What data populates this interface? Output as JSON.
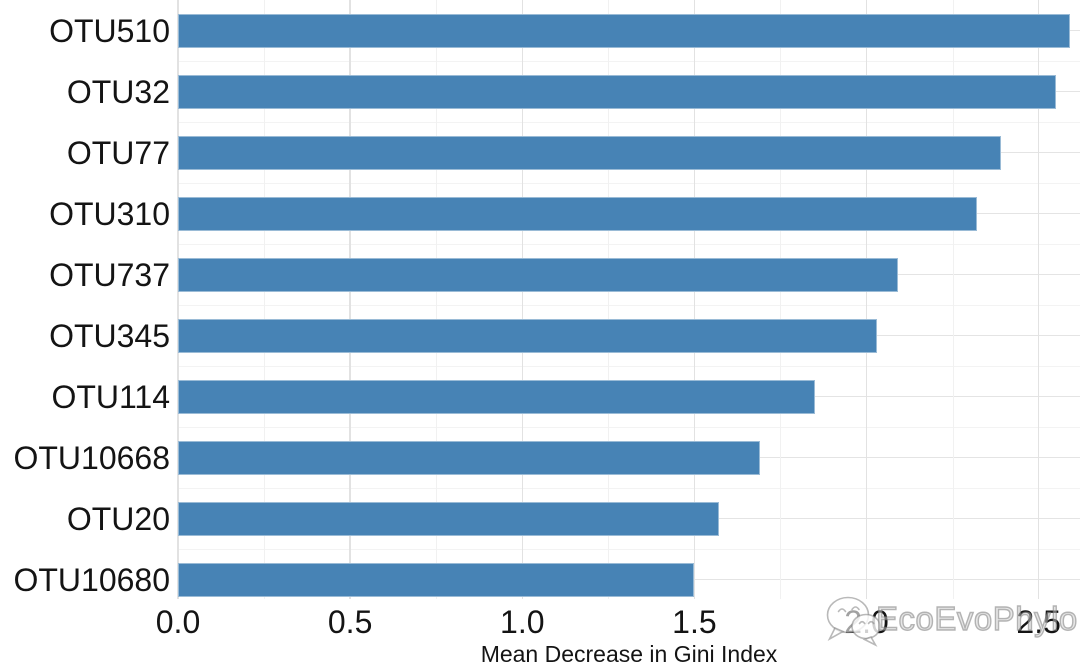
{
  "chart_data": {
    "type": "bar",
    "orientation": "horizontal",
    "title": "",
    "xlabel": "Mean Decrease in Gini Index",
    "ylabel": "",
    "categories": [
      "OTU510",
      "OTU32",
      "OTU77",
      "OTU310",
      "OTU737",
      "OTU345",
      "OTU114",
      "OTU10668",
      "OTU20",
      "OTU10680"
    ],
    "values": [
      2.59,
      2.55,
      2.39,
      2.32,
      2.09,
      2.03,
      1.85,
      1.69,
      1.57,
      1.5
    ],
    "xlim": [
      0,
      2.62
    ],
    "x_ticks": [
      0.0,
      0.5,
      1.0,
      1.5,
      2.0,
      2.5
    ],
    "x_tick_labels": [
      "0.0",
      "0.5",
      "1.0",
      "1.5",
      "2.0",
      "2.5"
    ],
    "grid": {
      "vertical_major_step": 0.5,
      "vertical_minor_step": 0.25,
      "horizontal_major": "category-centers",
      "horizontal_minor": "category-boundaries",
      "major_color": "#e2e2e2",
      "minor_color": "#f1f1f1"
    },
    "bar_color": "#4783b5",
    "legend": "none"
  },
  "watermark": {
    "text": "EcoEvoPhylo",
    "icon": "wechat-logo-icon",
    "color": "#8a8a8a"
  }
}
